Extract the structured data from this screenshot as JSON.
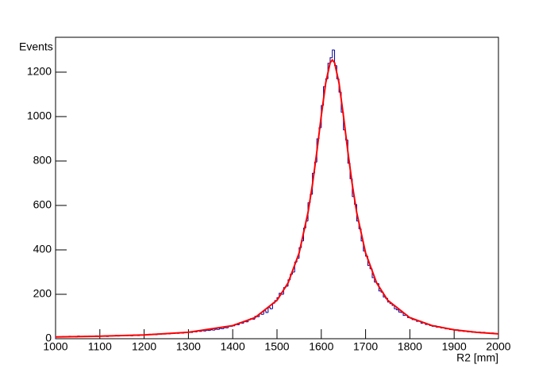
{
  "chart_data": {
    "type": "histogram",
    "y_label": "Events",
    "x_label": "R2 [mm]",
    "color": "#000099",
    "xlim": [
      1000,
      2000
    ],
    "ylim": [
      0,
      1357
    ],
    "xticks": [
      1000,
      1100,
      1200,
      1300,
      1400,
      1500,
      1600,
      1700,
      1800,
      1900,
      2000
    ],
    "yticks": [
      0,
      200,
      400,
      600,
      800,
      1000,
      1200
    ],
    "bins": [
      1000,
      1005,
      1010,
      1015,
      1020,
      1025,
      1030,
      1035,
      1040,
      1045,
      1050,
      1055,
      1060,
      1065,
      1070,
      1075,
      1080,
      1085,
      1090,
      1095,
      1100,
      1105,
      1110,
      1115,
      1120,
      1125,
      1130,
      1135,
      1140,
      1145,
      1150,
      1155,
      1160,
      1165,
      1170,
      1175,
      1180,
      1185,
      1190,
      1195,
      1200,
      1205,
      1210,
      1215,
      1220,
      1225,
      1230,
      1235,
      1240,
      1245,
      1250,
      1255,
      1260,
      1265,
      1270,
      1275,
      1280,
      1285,
      1290,
      1295,
      1300,
      1305,
      1310,
      1315,
      1320,
      1325,
      1330,
      1335,
      1340,
      1345,
      1350,
      1355,
      1360,
      1365,
      1370,
      1375,
      1380,
      1385,
      1390,
      1395,
      1400,
      1405,
      1410,
      1415,
      1420,
      1425,
      1430,
      1435,
      1440,
      1445,
      1450,
      1455,
      1460,
      1465,
      1470,
      1475,
      1480,
      1485,
      1490,
      1495,
      1500,
      1505,
      1510,
      1515,
      1520,
      1525,
      1530,
      1535,
      1540,
      1545,
      1550,
      1555,
      1560,
      1565,
      1570,
      1575,
      1580,
      1585,
      1590,
      1595,
      1600,
      1605,
      1610,
      1615,
      1620,
      1625,
      1630,
      1635,
      1640,
      1645,
      1650,
      1655,
      1660,
      1665,
      1670,
      1675,
      1680,
      1685,
      1690,
      1695,
      1700,
      1705,
      1710,
      1715,
      1720,
      1725,
      1730,
      1735,
      1740,
      1745,
      1750,
      1755,
      1760,
      1765,
      1770,
      1775,
      1780,
      1785,
      1790,
      1795,
      1800,
      1805,
      1810,
      1815,
      1820,
      1825,
      1830,
      1835,
      1840,
      1845,
      1850,
      1855,
      1860,
      1865,
      1870,
      1875,
      1880,
      1885,
      1890,
      1895,
      1900,
      1905,
      1910,
      1915,
      1920,
      1925,
      1930,
      1935,
      1940,
      1945,
      1950,
      1955,
      1960,
      1965,
      1970,
      1975,
      1980,
      1985,
      1990,
      1995,
      2000
    ],
    "counts": [
      8,
      9,
      7,
      10,
      9,
      8,
      11,
      9,
      10,
      8,
      12,
      9,
      10,
      11,
      9,
      12,
      10,
      11,
      13,
      10,
      12,
      11,
      13,
      10,
      14,
      12,
      13,
      15,
      12,
      14,
      13,
      16,
      14,
      15,
      13,
      17,
      15,
      14,
      18,
      16,
      18,
      17,
      20,
      19,
      21,
      18,
      22,
      20,
      23,
      21,
      24,
      22,
      25,
      23,
      26,
      24,
      27,
      25,
      29,
      27,
      30,
      28,
      32,
      31,
      34,
      33,
      36,
      35,
      38,
      37,
      40,
      39,
      43,
      42,
      46,
      45,
      50,
      49,
      55,
      56,
      58,
      65,
      63,
      72,
      70,
      78,
      76,
      85,
      90,
      88,
      101,
      99,
      112,
      110,
      126,
      118,
      140,
      135,
      160,
      172,
      185,
      205,
      200,
      230,
      236,
      265,
      290,
      300,
      345,
      362,
      410,
      440,
      498,
      530,
      612,
      650,
      745,
      795,
      900,
      950,
      1050,
      1135,
      1170,
      1240,
      1265,
      1300,
      1230,
      1170,
      1110,
      1020,
      940,
      895,
      790,
      720,
      640,
      605,
      530,
      495,
      440,
      395,
      372,
      330,
      315,
      275,
      255,
      248,
      215,
      210,
      188,
      182,
      165,
      158,
      150,
      135,
      130,
      120,
      118,
      105,
      106,
      95,
      94,
      86,
      85,
      78,
      79,
      70,
      72,
      64,
      66,
      59,
      56,
      58,
      52,
      54,
      48,
      49,
      44,
      46,
      41,
      42,
      38,
      40,
      35,
      37,
      33,
      34,
      31,
      33,
      29,
      31,
      28,
      30,
      26,
      29,
      25,
      27,
      24,
      26,
      22,
      23
    ],
    "fit": {
      "color": "#ff0000",
      "x": [
        1000,
        1100,
        1200,
        1300,
        1400,
        1450,
        1500,
        1525,
        1550,
        1570,
        1580,
        1590,
        1600,
        1610,
        1620,
        1625,
        1630,
        1640,
        1650,
        1660,
        1670,
        1680,
        1700,
        1725,
        1750,
        1800,
        1850,
        1900,
        1950,
        2000
      ],
      "values": [
        8,
        11.3,
        17.1,
        29,
        59.1,
        94.7,
        173.1,
        251,
        386.2,
        567.9,
        693.4,
        842.3,
        1004,
        1151.4,
        1242.6,
        1255,
        1242.6,
        1151.4,
        1004,
        842.3,
        693.4,
        567.9,
        386.2,
        251,
        173.1,
        94.7,
        59.1,
        40.2,
        29,
        21.9
      ]
    }
  }
}
